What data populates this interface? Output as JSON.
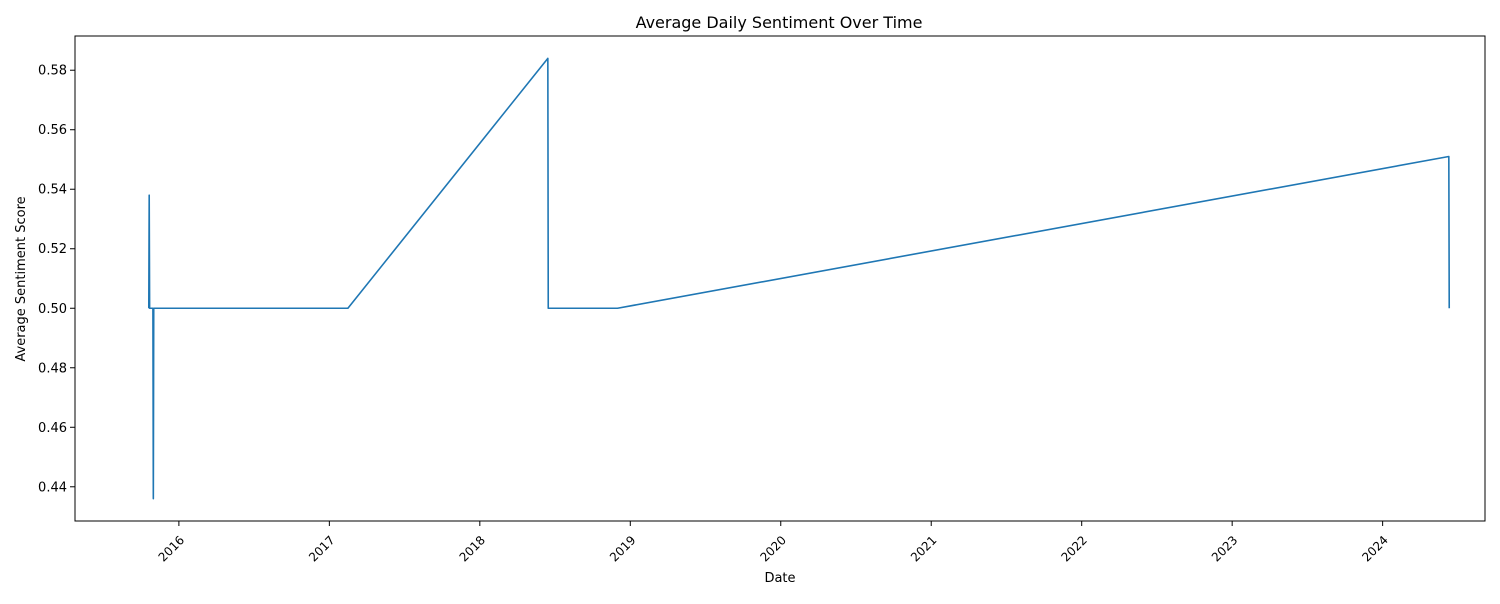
{
  "chart_data": {
    "type": "line",
    "title": "Average Daily Sentiment Over Time",
    "xlabel": "Date",
    "ylabel": "Average Sentiment Score",
    "x_tick_labels": [
      "2016",
      "2017",
      "2018",
      "2019",
      "2020",
      "2021",
      "2022",
      "2023",
      "2024"
    ],
    "y_tick_labels": [
      "0.44",
      "0.46",
      "0.48",
      "0.50",
      "0.52",
      "0.54",
      "0.56",
      "0.58"
    ],
    "xlim": [
      "2015-04-24",
      "2024-09-06"
    ],
    "ylim": [
      0.4285,
      0.5915
    ],
    "grid": false,
    "series": [
      {
        "color": "#1f77b4",
        "x": [
          "2015-10-20",
          "2015-10-21",
          "2015-10-22",
          "2015-10-23",
          "2015-10-30",
          "2015-10-31",
          "2015-11-01",
          "2015-11-02",
          "2017-02-15",
          "2018-06-15",
          "2018-06-16",
          "2018-12-01",
          "2024-06-10",
          "2024-06-11"
        ],
        "values": [
          0.5,
          0.538,
          0.5,
          0.5,
          0.5,
          0.436,
          0.5,
          0.5,
          0.5,
          0.584,
          0.5,
          0.5,
          0.551,
          0.5
        ]
      }
    ]
  }
}
